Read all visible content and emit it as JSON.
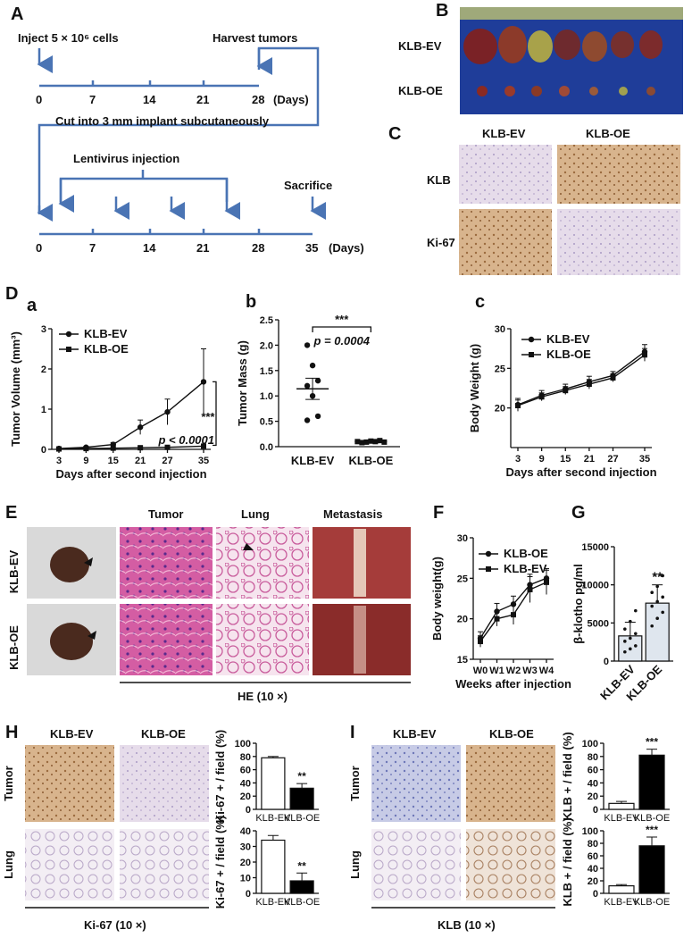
{
  "panels": {
    "A": "A",
    "B": "B",
    "C": "C",
    "D": "D",
    "E": "E",
    "F": "F",
    "G": "G",
    "H": "H",
    "I": "I"
  },
  "timeline": {
    "inject": "Inject 5 × 10⁶ cells",
    "harvest": "Harvest tumors",
    "cut": "Cut into 3 mm  implant subcutaneously",
    "lentivirus": "Lentivirus injection",
    "sacrifice": "Sacrifice",
    "days_unit": "(Days)",
    "axis1": [
      "0",
      "7",
      "14",
      "21",
      "28"
    ],
    "axis2": [
      "0",
      "7",
      "14",
      "21",
      "28",
      "35"
    ]
  },
  "groups": {
    "ev": "KLB-EV",
    "oe": "KLB-OE"
  },
  "ihc_rows": {
    "klb": "KLB",
    "ki67": "Ki-67"
  },
  "tissue": {
    "tumor": "Tumor",
    "lung": "Lung",
    "metastasis": "Metastasis"
  },
  "captions": {
    "he": "HE (10 ×)",
    "ki67": "Ki-67 (10 ×)",
    "klb": "KLB (10 ×)"
  },
  "sub": {
    "a": "a",
    "b": "b",
    "c": "c"
  },
  "chart_data": [
    {
      "id": "Da",
      "type": "line",
      "xlabel": "Days after second injection",
      "ylabel": "Tumor Volume (mm³)",
      "x": [
        3,
        9,
        15,
        21,
        27,
        35
      ],
      "ylim": [
        0,
        3
      ],
      "yticks": [
        0,
        1,
        2,
        3
      ],
      "series": [
        {
          "name": "KLB-EV",
          "values": [
            0.02,
            0.05,
            0.12,
            0.55,
            0.93,
            1.68
          ],
          "err": [
            0.01,
            0.02,
            0.05,
            0.18,
            0.32,
            0.82
          ]
        },
        {
          "name": "KLB-OE",
          "values": [
            0.01,
            0.02,
            0.03,
            0.04,
            0.05,
            0.08
          ],
          "err": [
            0.005,
            0.01,
            0.01,
            0.01,
            0.02,
            0.03
          ]
        }
      ],
      "annotation_sig": "***",
      "annotation_p": "p < 0.0001"
    },
    {
      "id": "Db",
      "type": "scatter",
      "ylabel": "Tumor  Mass (g)",
      "categories": [
        "KLB-EV",
        "KLB-OE"
      ],
      "ylim": [
        0,
        2.5
      ],
      "yticks": [
        "0.0",
        "0.5",
        "1.0",
        "1.5",
        "2.0",
        "2.5"
      ],
      "points": [
        [
          2.0,
          1.6,
          1.3,
          1.2,
          1.0,
          0.6,
          0.52
        ],
        [
          0.1,
          0.08,
          0.09,
          0.11,
          0.1,
          0.12,
          0.09
        ]
      ],
      "mean": [
        1.14,
        0.1
      ],
      "sem": [
        0.21,
        0.01
      ],
      "annotation_sig": "***",
      "annotation_p": "p = 0.0004"
    },
    {
      "id": "Dc",
      "type": "line",
      "xlabel": "Days after second injection",
      "ylabel": "Body Weight (g)",
      "x": [
        3,
        9,
        15,
        21,
        27,
        35
      ],
      "ylim": [
        15,
        30
      ],
      "yticks": [
        20,
        25,
        30
      ],
      "series": [
        {
          "name": "KLB-EV",
          "values": [
            20.4,
            21.6,
            22.4,
            23.3,
            24.1,
            27.1
          ],
          "err": [
            0.8,
            0.6,
            0.6,
            0.7,
            0.5,
            0.9
          ]
        },
        {
          "name": "KLB-OE",
          "values": [
            20.3,
            21.4,
            22.2,
            23.0,
            23.8,
            26.7
          ],
          "err": [
            0.7,
            0.5,
            0.5,
            0.6,
            0.5,
            0.8
          ]
        }
      ]
    },
    {
      "id": "F",
      "type": "line",
      "xlabel": "Weeks after injection",
      "ylabel": "Body weight(g)",
      "categories": [
        "W0",
        "W1",
        "W2",
        "W3",
        "W4"
      ],
      "ylim": [
        15,
        30
      ],
      "yticks": [
        15,
        20,
        25,
        30
      ],
      "series": [
        {
          "name": "KLB-OE",
          "values": [
            17.6,
            20.9,
            21.8,
            24.2,
            25.0
          ],
          "err": [
            0.8,
            1.0,
            1.0,
            1.3,
            1.2
          ]
        },
        {
          "name": "KLB-EV",
          "values": [
            17.2,
            20.0,
            20.5,
            23.6,
            24.5
          ],
          "err": [
            0.7,
            0.9,
            1.2,
            1.6,
            1.5
          ]
        }
      ]
    },
    {
      "id": "G",
      "type": "bar",
      "ylabel": "β-klotho pg/ml",
      "categories": [
        "KLB-EV",
        "KLB-OE"
      ],
      "ylim": [
        0,
        15000
      ],
      "yticks": [
        0,
        5000,
        10000,
        15000
      ],
      "values": [
        3300,
        7600
      ],
      "err": [
        1800,
        2400
      ],
      "points": [
        [
          1200,
          1600,
          2000,
          2600,
          3000,
          3600,
          4200,
          5200,
          6600
        ],
        [
          4600,
          5600,
          6400,
          7200,
          7800,
          8400,
          9000,
          9800,
          11200
        ]
      ],
      "annotation_sig": "**"
    },
    {
      "id": "H1",
      "type": "bar",
      "ylabel": "Ki-67 + / field (%)",
      "categories": [
        "KLB-EV",
        "KLB-OE"
      ],
      "ylim": [
        0,
        100
      ],
      "yticks": [
        0,
        20,
        40,
        60,
        80,
        100
      ],
      "values": [
        78,
        32
      ],
      "err": [
        2,
        7
      ],
      "annotation_sig": "**"
    },
    {
      "id": "H2",
      "type": "bar",
      "ylabel": "Ki-67 + / field (%)",
      "categories": [
        "KLB-EV",
        "KLB-OE"
      ],
      "ylim": [
        0,
        40
      ],
      "yticks": [
        0,
        10,
        20,
        30,
        40
      ],
      "values": [
        34,
        8
      ],
      "err": [
        3,
        5
      ],
      "annotation_sig": "**"
    },
    {
      "id": "I1",
      "type": "bar",
      "ylabel": "KLB + / field (%)",
      "categories": [
        "KLB-EV",
        "KLB-OE"
      ],
      "ylim": [
        0,
        100
      ],
      "yticks": [
        0,
        20,
        40,
        60,
        80,
        100
      ],
      "values": [
        9,
        82
      ],
      "err": [
        3,
        9
      ],
      "annotation_sig": "***"
    },
    {
      "id": "I2",
      "type": "bar",
      "ylabel": "KLB + / field (%)",
      "categories": [
        "KLB-EV",
        "KLB-OE"
      ],
      "ylim": [
        0,
        100
      ],
      "yticks": [
        0,
        20,
        40,
        60,
        80,
        100
      ],
      "values": [
        12,
        76
      ],
      "err": [
        2,
        14
      ],
      "annotation_sig": "***"
    }
  ]
}
